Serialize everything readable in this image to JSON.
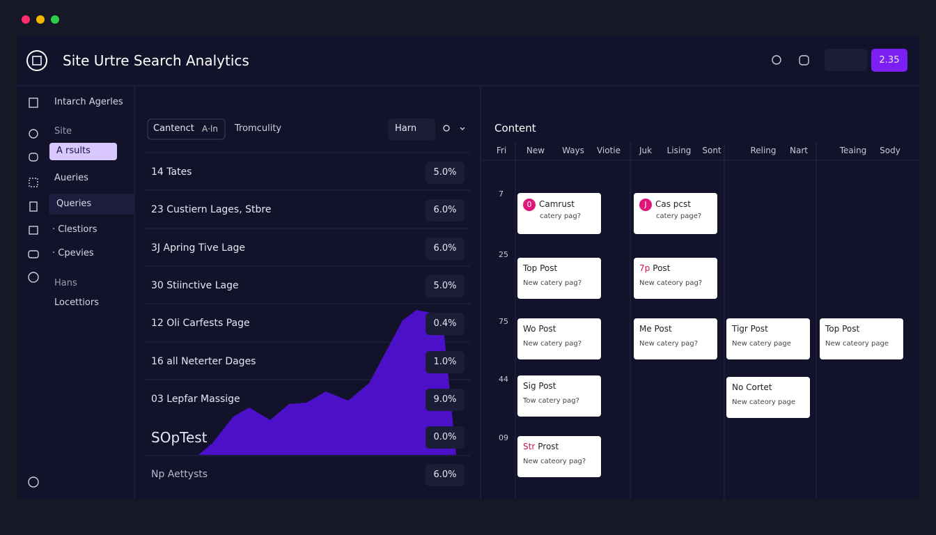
{
  "header": {
    "title": "Site Urtre Search Analytics",
    "button": "2.35"
  },
  "sidebar": {
    "items": [
      "Intarch Agerles",
      "Site",
      "A rsults",
      "Aueries",
      "Queries",
      "· Clestiors",
      "· Cpevies",
      "Hans",
      "Locettiors"
    ]
  },
  "toolbar": {
    "tab_active": "Cantenct",
    "tab_tag": "A·ln",
    "tab": "Tromculity",
    "dropdown": "Harn"
  },
  "table": {
    "rows": [
      [
        "14 Tates",
        "5.0%"
      ],
      [
        "23 Custiern Lages, Stbre",
        "6.0%"
      ],
      [
        "3J Apring Tive Lage",
        "6.0%"
      ],
      [
        "30 Stiinctive Lage",
        "5.0%"
      ],
      [
        "12 Oli Carfests Page",
        "0.4%"
      ],
      [
        "16 all Neterter Dages",
        "1.0%"
      ],
      [
        "03 Lepfar Massige",
        "9.0%"
      ],
      [
        "SOpTest",
        "0.0%"
      ],
      [
        "Np Aettysts",
        "6.0%"
      ]
    ]
  },
  "calendar": {
    "title": "Content",
    "columns": [
      "Fri",
      "New",
      "Ways",
      "Viotie",
      "Juk",
      "Lising",
      "Sont",
      "Reling",
      "Nart",
      "Teaing",
      "Sody"
    ],
    "rows": [
      "7",
      "25",
      "75",
      "44",
      "09"
    ],
    "cards": [
      {
        "badge": "0",
        "title": "Camrust",
        "subtitle": "catery pag?"
      },
      {
        "badge": "J",
        "title": "Cas pcst",
        "subtitle": "catery page?"
      },
      {
        "title": "Top Post",
        "subtitle": "New catery pag?"
      },
      {
        "accent": "7p",
        "title": "Post",
        "subtitle": "New cateory pag?"
      },
      {
        "title": "Wo Post",
        "subtitle": "New catery pag?"
      },
      {
        "title": "Me Post",
        "subtitle": "New catery pag?"
      },
      {
        "title": "Tigr Post",
        "subtitle": "New catery page"
      },
      {
        "title": "Top Post",
        "subtitle": "New cateory page"
      },
      {
        "title": "Sig Post",
        "subtitle": "Tow catery pag?"
      },
      {
        "title": "No Cortet",
        "subtitle": "New cateory page"
      },
      {
        "accent": "Str",
        "title": "Prost",
        "subtitle": "New cateory pag?"
      }
    ]
  }
}
